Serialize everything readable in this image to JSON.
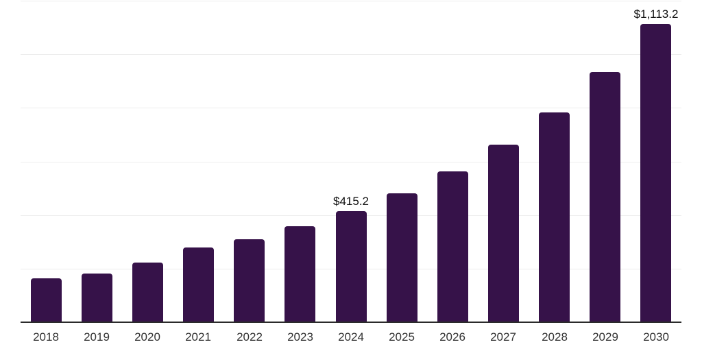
{
  "chart_data": {
    "type": "bar",
    "title": "",
    "xlabel": "",
    "ylabel": "",
    "categories": [
      "2018",
      "2019",
      "2020",
      "2021",
      "2022",
      "2023",
      "2024",
      "2025",
      "2026",
      "2027",
      "2028",
      "2029",
      "2030"
    ],
    "values": [
      164.0,
      181.7,
      221.9,
      278.9,
      309.6,
      357.0,
      415.2,
      481.9,
      563.0,
      662.8,
      783.1,
      933.3,
      1113.2
    ],
    "bar_labels": [
      "",
      "",
      "",
      "",
      "",
      "",
      "$415.2",
      "",
      "",
      "",
      "",
      "",
      "$1,113.2"
    ],
    "ylim": [
      0,
      1200
    ],
    "grid_step": 200,
    "grid": true,
    "legend": false,
    "y_axis_labels_visible": false
  },
  "colors": {
    "bar": "#361249",
    "grid": "#EDEDED",
    "axis": "#2B2B2B",
    "tick_text": "#333333",
    "label_text": "#111111",
    "background": "#FFFFFF"
  }
}
